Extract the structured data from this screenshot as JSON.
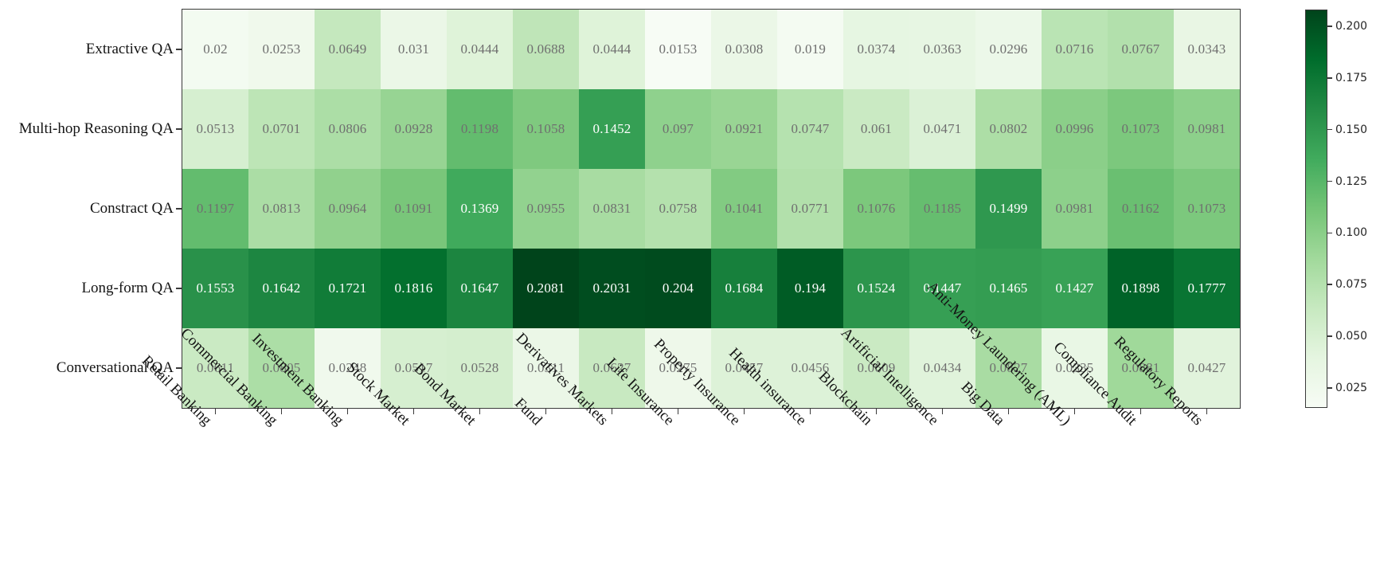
{
  "chart_data": {
    "type": "heatmap",
    "title": "",
    "xlabel": "",
    "ylabel": "",
    "grid": false,
    "legend_position": "right-colorbar",
    "rows": [
      "Extractive QA",
      "Multi-hop Reasoning QA",
      "Constract QA",
      "Long-form QA",
      "Conversational QA"
    ],
    "columns": [
      "Retail Banking",
      "Commercial Banking",
      "Investment Banking",
      "Stock Market",
      "Bond Market",
      "Fund",
      "Derivatives Markets",
      "Life Insurance",
      "Property Insurance",
      "Health insurance",
      "Blockchain",
      "Artificial Intelligence",
      "Big Data",
      "Anti-Money Laundering (AML)",
      "Compliance Audit",
      "Regulatory Reports"
    ],
    "values": [
      [
        0.02,
        0.0253,
        0.0649,
        0.031,
        0.0444,
        0.0688,
        0.0444,
        0.0153,
        0.0308,
        0.019,
        0.0374,
        0.0363,
        0.0296,
        0.0716,
        0.0767,
        0.0343
      ],
      [
        0.0513,
        0.0701,
        0.0806,
        0.0928,
        0.1198,
        0.1058,
        0.1452,
        0.097,
        0.0921,
        0.0747,
        0.061,
        0.0471,
        0.0802,
        0.0996,
        0.1073,
        0.0981
      ],
      [
        0.1197,
        0.0813,
        0.0964,
        0.1091,
        0.1369,
        0.0955,
        0.0831,
        0.0758,
        0.1041,
        0.0771,
        0.1076,
        0.1185,
        0.1499,
        0.0981,
        0.1162,
        0.1073
      ],
      [
        0.1553,
        0.1642,
        0.1721,
        0.1816,
        0.1647,
        0.2081,
        0.2031,
        0.204,
        0.1684,
        0.194,
        0.1524,
        0.1447,
        0.1465,
        0.1427,
        0.1898,
        0.1777
      ],
      [
        0.0611,
        0.0805,
        0.0248,
        0.0517,
        0.0528,
        0.0311,
        0.0627,
        0.0275,
        0.0457,
        0.0456,
        0.0609,
        0.0434,
        0.0827,
        0.0335,
        0.0881,
        0.0427
      ]
    ],
    "vmin": 0.0153,
    "vmax": 0.2081,
    "colormap": {
      "name": "Greens",
      "stops": [
        {
          "p": 0.0,
          "c": [
            247,
            252,
            245
          ]
        },
        {
          "p": 0.125,
          "c": [
            229,
            245,
            224
          ]
        },
        {
          "p": 0.25,
          "c": [
            199,
            233,
            192
          ]
        },
        {
          "p": 0.375,
          "c": [
            161,
            217,
            155
          ]
        },
        {
          "p": 0.5,
          "c": [
            116,
            196,
            118
          ]
        },
        {
          "p": 0.625,
          "c": [
            65,
            171,
            93
          ]
        },
        {
          "p": 0.75,
          "c": [
            35,
            139,
            69
          ]
        },
        {
          "p": 0.875,
          "c": [
            0,
            109,
            44
          ]
        },
        {
          "p": 1.0,
          "c": [
            0,
            68,
            27
          ]
        }
      ]
    },
    "colorbar_ticks": [
      0.2,
      0.175,
      0.15,
      0.125,
      0.1,
      0.075,
      0.05,
      0.025
    ],
    "annotation_colors": {
      "light_cell_text": "#6f6f6f",
      "dark_cell_text": "#ffffff",
      "white_text_threshold_norm": 0.6
    },
    "frame_color": "#3a3a3a"
  }
}
